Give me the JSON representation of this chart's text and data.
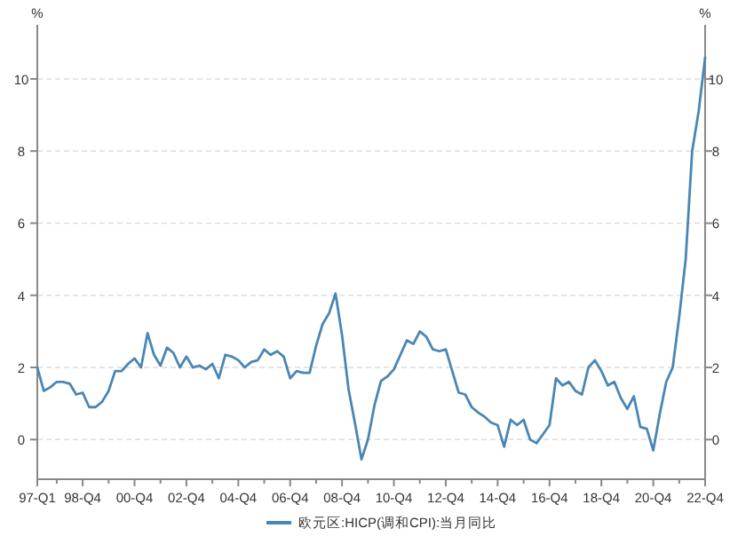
{
  "chart_data": {
    "type": "line",
    "ylabel": "%",
    "y2label": "%",
    "grid": "y",
    "legend": "bottom",
    "line_style": "solid",
    "categories": [
      "97-Q1",
      null,
      null,
      null,
      null,
      null,
      null,
      "98-Q4",
      null,
      null,
      null,
      null,
      null,
      null,
      null,
      "00-Q4",
      null,
      null,
      null,
      null,
      null,
      null,
      null,
      "02-Q4",
      null,
      null,
      null,
      null,
      null,
      null,
      null,
      "04-Q4",
      null,
      null,
      null,
      null,
      null,
      null,
      null,
      "06-Q4",
      null,
      null,
      null,
      null,
      null,
      null,
      null,
      "08-Q4",
      null,
      null,
      null,
      null,
      null,
      null,
      null,
      "10-Q4",
      null,
      null,
      null,
      null,
      null,
      null,
      null,
      "12-Q4",
      null,
      null,
      null,
      null,
      null,
      null,
      null,
      "14-Q4",
      null,
      null,
      null,
      null,
      null,
      null,
      null,
      "16-Q4",
      null,
      null,
      null,
      null,
      null,
      null,
      null,
      "18-Q4",
      null,
      null,
      null,
      null,
      null,
      null,
      null,
      "20-Q4",
      null,
      null,
      null,
      null,
      null,
      null,
      null,
      "22-Q4"
    ],
    "series": [
      {
        "name": "欧元区:HICP(调和CPI):当月同比",
        "color": "#4a86b4",
        "values": [
          2.0,
          1.35,
          1.45,
          1.6,
          1.6,
          1.55,
          1.25,
          1.3,
          0.9,
          0.9,
          1.05,
          1.35,
          1.9,
          1.9,
          2.1,
          2.25,
          2.0,
          2.95,
          2.35,
          2.05,
          2.55,
          2.4,
          2.0,
          2.3,
          2.0,
          2.05,
          1.95,
          2.1,
          1.7,
          2.35,
          2.3,
          2.2,
          2.0,
          2.15,
          2.2,
          2.5,
          2.35,
          2.45,
          2.3,
          1.7,
          1.9,
          1.85,
          1.85,
          2.6,
          3.2,
          3.5,
          4.05,
          2.9,
          1.4,
          0.45,
          -0.55,
          0.0,
          0.95,
          1.62,
          1.75,
          1.95,
          2.35,
          2.75,
          2.65,
          3.0,
          2.85,
          2.5,
          2.45,
          2.5,
          1.9,
          1.3,
          1.25,
          0.9,
          0.75,
          0.63,
          0.47,
          0.4,
          -0.2,
          0.55,
          0.4,
          0.55,
          0.0,
          -0.1,
          0.15,
          0.4,
          1.7,
          1.5,
          1.6,
          1.35,
          1.25,
          2.0,
          2.2,
          1.9,
          1.5,
          1.6,
          1.15,
          0.85,
          1.2,
          0.35,
          0.3,
          -0.3,
          0.7,
          1.6,
          2.0,
          3.4,
          5.0,
          8.0,
          9.1,
          10.6
        ]
      }
    ],
    "ylim": [
      -1.1,
      11.5
    ],
    "yticks": [
      0,
      2,
      4,
      6,
      8,
      10
    ],
    "y2lim": [
      -1.1,
      11.5
    ],
    "y2ticks": [
      0,
      2,
      4,
      6,
      8,
      10
    ]
  }
}
